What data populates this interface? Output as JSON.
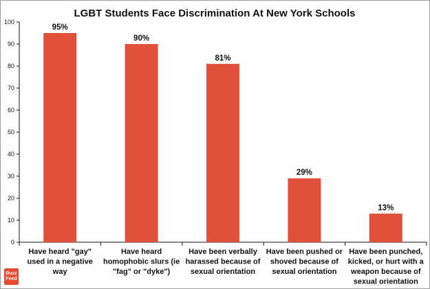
{
  "colors": {
    "bar": "#e0503a",
    "axis": "#111111",
    "grid": "#222222"
  },
  "logo": {
    "text": "Buzz Feed"
  },
  "chart_data": {
    "type": "bar",
    "title": "LGBT Students Face Discrimination At New York Schools",
    "xlabel": "",
    "ylabel": "",
    "ylim": [
      0,
      100
    ],
    "yticks": [
      0,
      10,
      20,
      30,
      40,
      50,
      60,
      70,
      80,
      90,
      100
    ],
    "grid": false,
    "categories": [
      "Have heard \"gay\" used in a negative way",
      "Have heard homophobic slurs (ie \"fag\" or \"dyke\")",
      "Have been verbally harassed because of sexual orientation",
      "Have been pushed or shoved because of sexual orientation",
      "Have been punched, kicked,  or hurt with a weapon because of sexual orientation"
    ],
    "category_lines": [
      [
        "Have heard \"gay\"",
        "used in a negative",
        "way"
      ],
      [
        "Have heard",
        "homophobic slurs (ie",
        "\"fag\" or \"dyke\")"
      ],
      [
        "Have been verbally",
        "harassed because of",
        "sexual orientation"
      ],
      [
        "Have been pushed or",
        "shoved because of",
        "sexual orientation"
      ],
      [
        "Have been punched,",
        "kicked,  or hurt with a",
        "weapon because of",
        "sexual orientation"
      ]
    ],
    "values": [
      95,
      90,
      81,
      29,
      13
    ],
    "data_labels": [
      "95%",
      "90%",
      "81%",
      "29%",
      "13%"
    ]
  }
}
